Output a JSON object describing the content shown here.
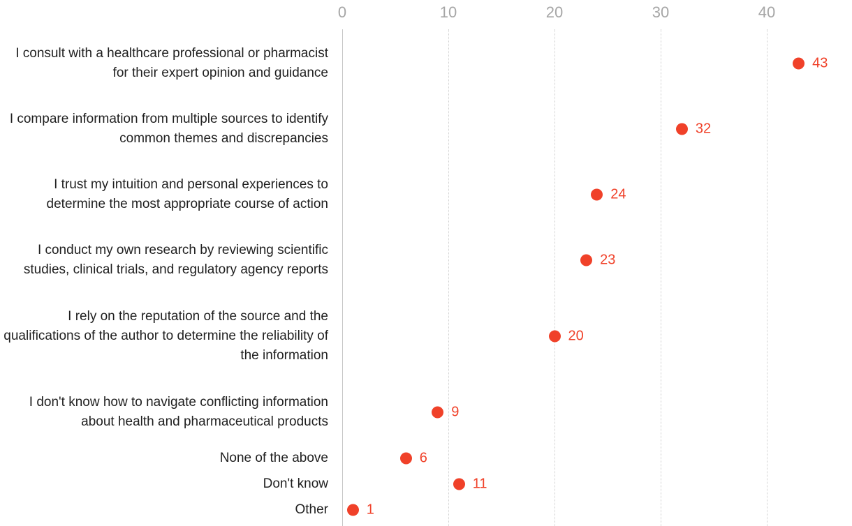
{
  "chart_data": {
    "type": "scatter",
    "variant": "horizontal-dot-plot",
    "title": "",
    "xlabel": "",
    "ylabel": "",
    "xlim": [
      0,
      48
    ],
    "x_ticks": [
      0,
      10,
      20,
      30,
      40
    ],
    "grid": "vertical-dotted",
    "legend": "none",
    "value_labels_shown": true,
    "dot_color": "#f04129",
    "value_label_color": "#f04129",
    "tick_label_color": "#a6a6a6",
    "category_label_color": "#1f1f1f",
    "categories": [
      "I consult with a healthcare professional or pharmacist for their expert opinion and guidance",
      "I compare information from multiple sources to identify common themes and discrepancies",
      "I trust my intuition and personal experiences to determine the most appropriate course of action",
      "I conduct my own research by reviewing scientific studies, clinical trials, and regulatory agency reports",
      "I rely on the reputation of the source and the qualifications of the author to determine the reliability of the information",
      "I don't know how to navigate conflicting information about health and pharmaceutical products",
      "None of the above",
      "Don't know",
      "Other"
    ],
    "values": [
      43,
      32,
      24,
      23,
      20,
      9,
      6,
      11,
      1
    ]
  }
}
